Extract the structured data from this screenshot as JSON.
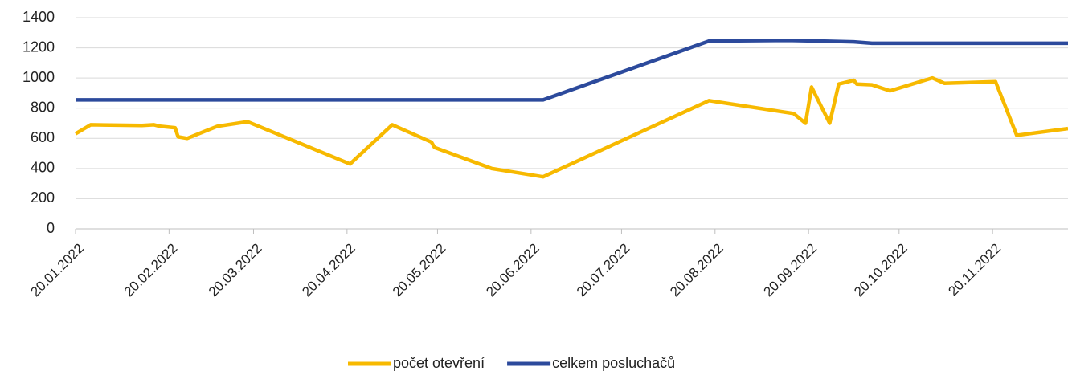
{
  "chart_data": {
    "type": "line",
    "xlim": [
      "20.01.2022",
      "15.12.2022"
    ],
    "xticks": [
      "20.01.2022",
      "20.02.2022",
      "20.03.2022",
      "20.04.2022",
      "20.05.2022",
      "20.06.2022",
      "20.07.2022",
      "20.08.2022",
      "20.09.2022",
      "20.10.2022",
      "20.11.2022"
    ],
    "ylim": [
      0,
      1400
    ],
    "yticks": [
      0,
      200,
      400,
      600,
      800,
      1000,
      1200,
      1400
    ],
    "grid": true,
    "legend": "bottom",
    "series": [
      {
        "name": "počet otevření",
        "color": "#f7b900",
        "x": [
          "20.01.2022",
          "25.01.2022",
          "11.02.2022",
          "15.02.2022",
          "17.02.2022",
          "22.02.2022",
          "23.02.2022",
          "26.02.2022",
          "08.03.2022",
          "18.03.2022",
          "21.04.2022",
          "05.05.2022",
          "18.05.2022",
          "19.05.2022",
          "07.06.2022",
          "24.06.2022",
          "18.08.2022",
          "15.09.2022",
          "19.09.2022",
          "21.09.2022",
          "27.09.2022",
          "30.09.2022",
          "05.10.2022",
          "06.10.2022",
          "11.10.2022",
          "17.10.2022",
          "31.10.2022",
          "04.11.2022",
          "21.11.2022",
          "28.11.2022",
          "15.12.2022"
        ],
        "values": [
          630,
          690,
          685,
          690,
          680,
          670,
          610,
          600,
          680,
          710,
          430,
          690,
          575,
          540,
          400,
          345,
          850,
          765,
          700,
          940,
          700,
          960,
          985,
          960,
          955,
          915,
          1000,
          965,
          975,
          620,
          665
        ]
      },
      {
        "name": "celkem posluchačů",
        "color": "#2c4a9c",
        "x": [
          "20.01.2022",
          "24.06.2022",
          "18.08.2022",
          "13.09.2022",
          "05.10.2022",
          "11.10.2022",
          "15.12.2022"
        ],
        "values": [
          855,
          855,
          1245,
          1250,
          1240,
          1230,
          1230
        ]
      }
    ]
  }
}
